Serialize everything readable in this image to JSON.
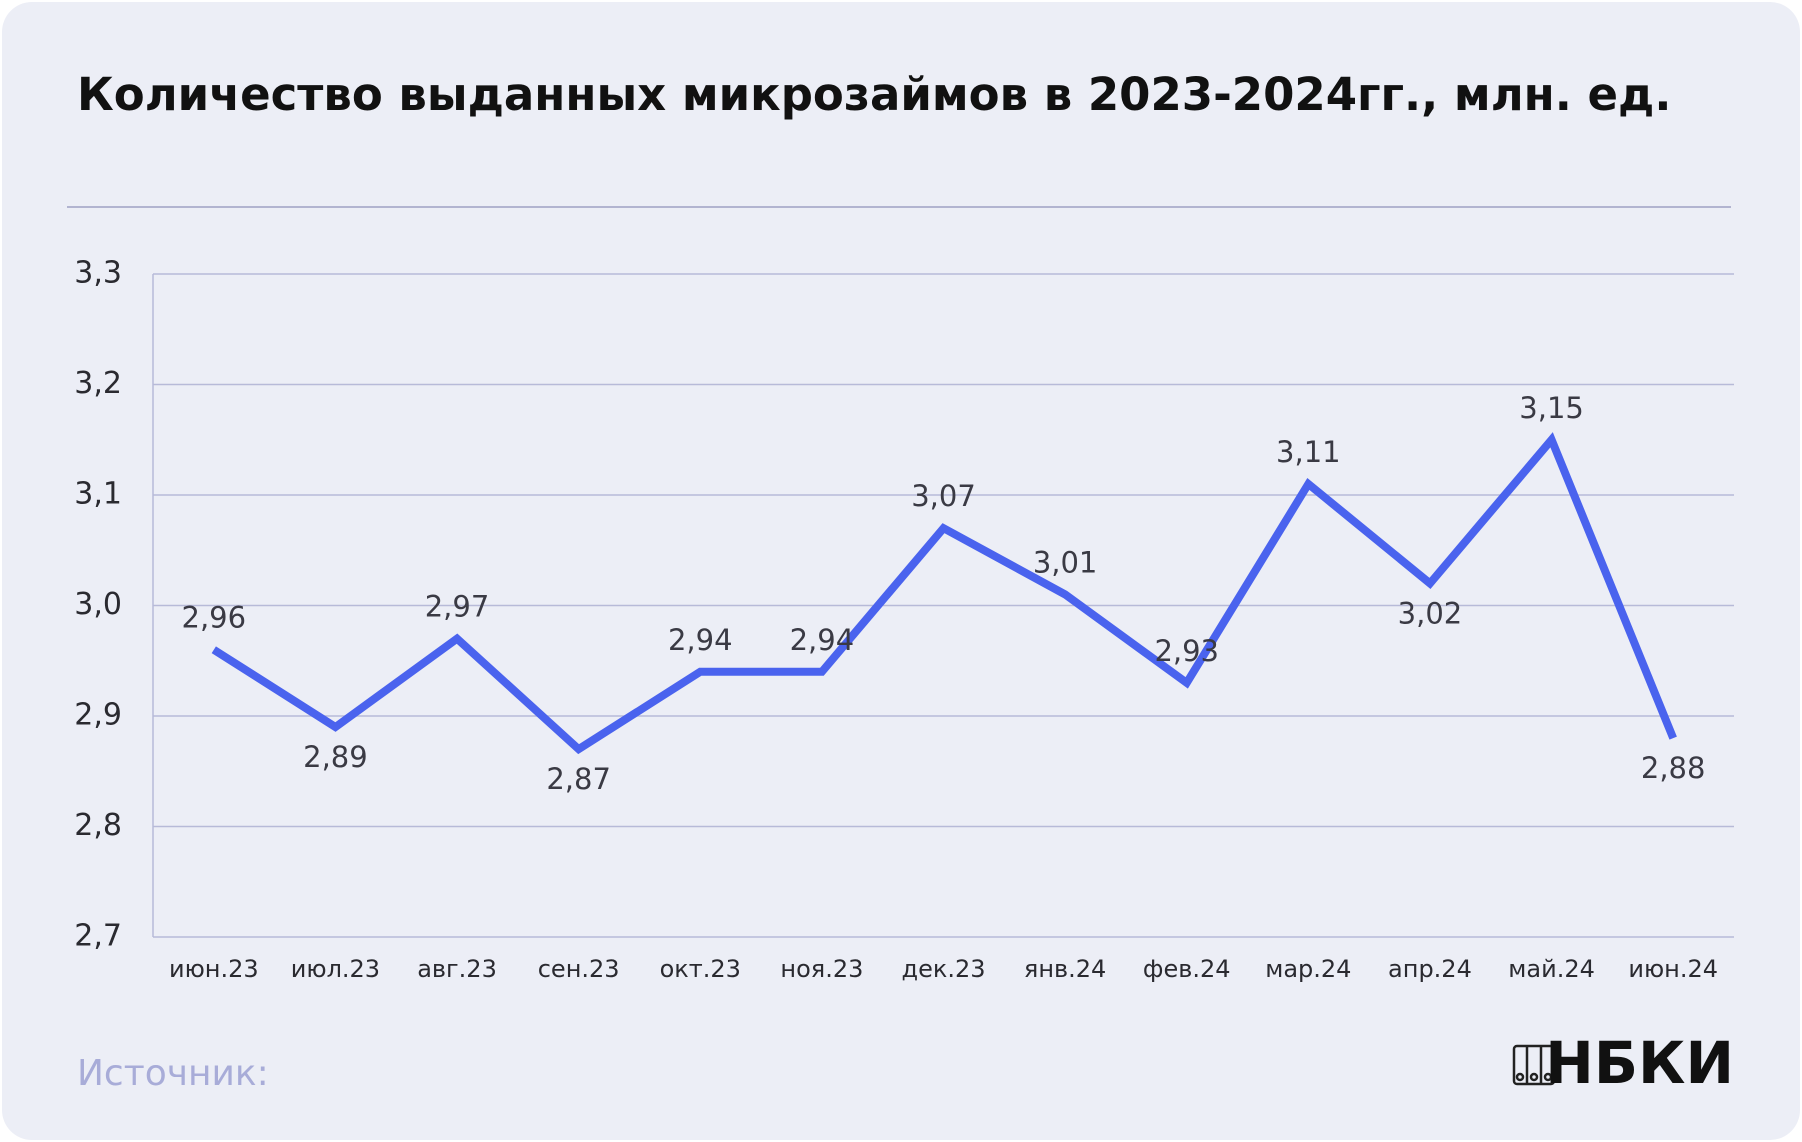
{
  "chart_data": {
    "type": "line",
    "title": "Количество выданных микрозаймов в 2023-2024гг., млн. ед.",
    "categories": [
      "июн.23",
      "июл.23",
      "авг.23",
      "сен.23",
      "окт.23",
      "ноя.23",
      "дек.23",
      "янв.24",
      "фев.24",
      "мар.24",
      "апр.24",
      "май.24",
      "июн.24"
    ],
    "series": [
      {
        "name": "Количество выданных микрозаймов",
        "color": "#4a63ee",
        "values": [
          2.96,
          2.89,
          2.97,
          2.87,
          2.94,
          2.94,
          3.07,
          3.01,
          2.93,
          3.11,
          3.02,
          3.15,
          2.88
        ],
        "value_labels": [
          "2,96",
          "2,89",
          "2,97",
          "2,87",
          "2,94",
          "2,94",
          "3,07",
          "3,01",
          "2,93",
          "3,11",
          "3,02",
          "3,15",
          "2,88"
        ]
      }
    ],
    "ylim": [
      2.7,
      3.3
    ],
    "yticks": [
      {
        "value": 2.7,
        "label": "2,7"
      },
      {
        "value": 2.8,
        "label": "2,8"
      },
      {
        "value": 2.9,
        "label": "2,9"
      },
      {
        "value": 3.0,
        "label": "3,0"
      },
      {
        "value": 3.1,
        "label": "3,1"
      },
      {
        "value": 3.2,
        "label": "3,2"
      },
      {
        "value": 3.3,
        "label": "3,3"
      }
    ],
    "grid": true
  },
  "source": "Источник:",
  "logo": "НБКИ"
}
